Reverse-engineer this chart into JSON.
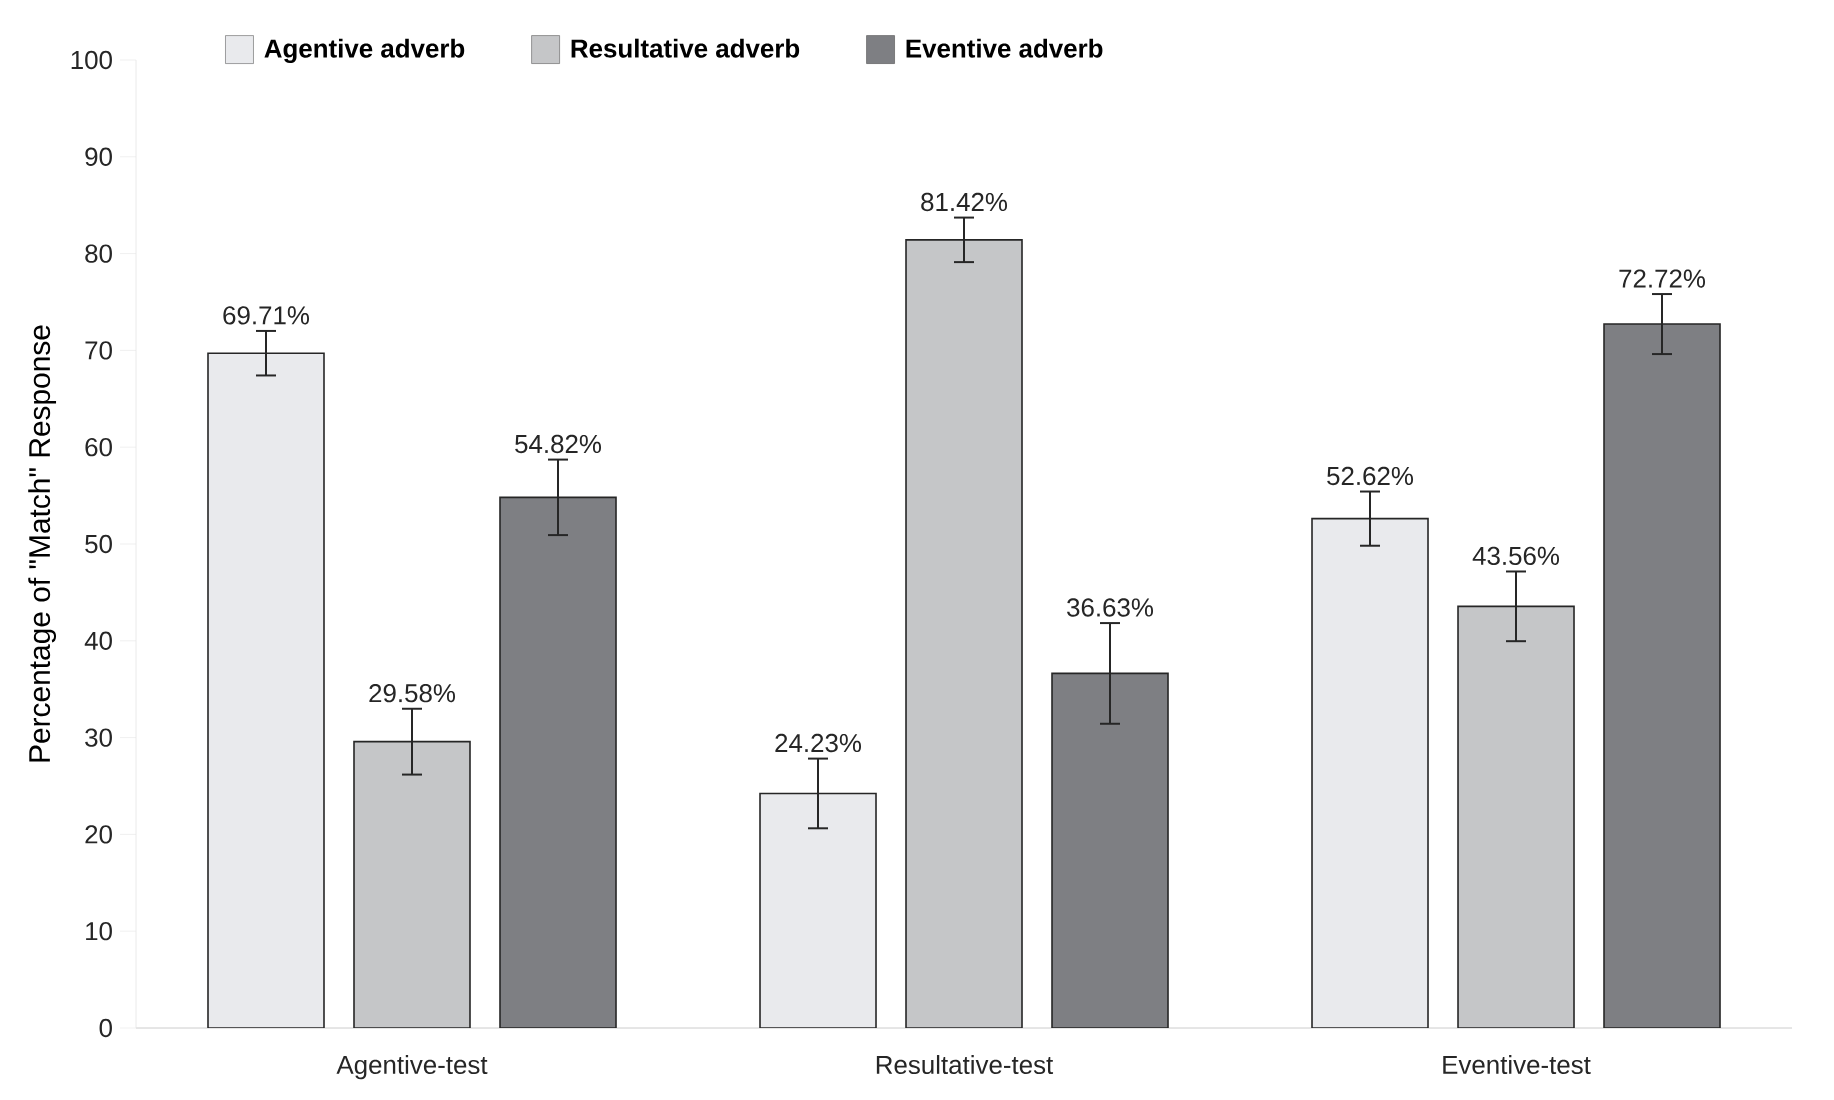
{
  "chart_data": {
    "type": "bar",
    "ylabel": "Percentage of \"Match\" Response",
    "categories": [
      "Agentive-test",
      "Resultative-test",
      "Eventive-test"
    ],
    "series": [
      {
        "name": "Agentive adverb",
        "color": "#e9eaed",
        "values": [
          69.71,
          24.23,
          52.62
        ],
        "errors": [
          2.3,
          3.6,
          2.8
        ],
        "value_labels": [
          "69.71%",
          "24.23%",
          "52.62%"
        ]
      },
      {
        "name": "Resultative adverb",
        "color": "#c5c6c8",
        "values": [
          29.58,
          81.42,
          43.56
        ],
        "errors": [
          3.4,
          2.3,
          3.6
        ],
        "value_labels": [
          "29.58%",
          "81.42%",
          "43.56%"
        ]
      },
      {
        "name": "Eventive adverb",
        "color": "#7e7f83",
        "values": [
          54.82,
          36.63,
          72.72
        ],
        "errors": [
          3.9,
          5.2,
          3.1
        ],
        "value_labels": [
          "54.82%",
          "36.63%",
          "72.72%"
        ]
      }
    ],
    "ylim": [
      0,
      100
    ],
    "yticks": [
      0,
      10,
      20,
      30,
      40,
      50,
      60,
      70,
      80,
      90,
      100
    ],
    "legend": "top",
    "grid": false
  }
}
